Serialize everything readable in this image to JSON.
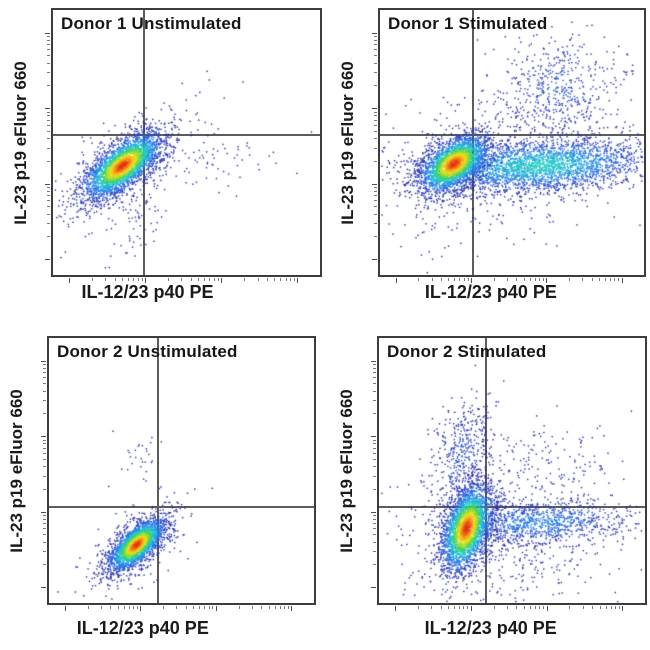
{
  "chart_data": {
    "type": "scatter",
    "subtype": "flow-cytometry-pseudocolor-density-dot-plots",
    "grid": "2 rows x 2 columns",
    "axes": {
      "x_label": "IL-12/23 p40 PE",
      "y_label": "IL-23 p19 eFluor 660",
      "scale": "biexponential log-style axes, unlabeled minor ticks",
      "gridlines": false
    },
    "legend": "none (density encoded blue=low to red=high)",
    "colormap": [
      {
        "t": 0.0,
        "color": "#23249e"
      },
      {
        "t": 0.12,
        "color": "#2b44c8"
      },
      {
        "t": 0.25,
        "color": "#2472e8"
      },
      {
        "t": 0.4,
        "color": "#1fa8e0"
      },
      {
        "t": 0.52,
        "color": "#24cfc3"
      },
      {
        "t": 0.62,
        "color": "#3bd45e"
      },
      {
        "t": 0.72,
        "color": "#9fdd2e"
      },
      {
        "t": 0.82,
        "color": "#eee01a"
      },
      {
        "t": 0.91,
        "color": "#f89b17"
      },
      {
        "t": 1.0,
        "color": "#e32c12"
      }
    ],
    "style": {
      "gate_color": "#5c5c5c",
      "border_color": "#3c3c3c",
      "text_color": "#1a1a1a",
      "background": "#ffffff"
    },
    "tick_layout": {
      "decade_fracs": [
        0.06,
        0.345,
        0.63,
        0.915
      ],
      "decade_span": 0.285
    },
    "panels": [
      {
        "title": "Donor 1 Unstimulated",
        "xlabel": "IL-12/23 p40 PE",
        "ylabel": "IL-23 p19 eFluor 660",
        "quadrant_gate": {
          "x_frac": 0.34,
          "y_frac": 0.472
        },
        "populations": [
          {
            "name": "halo",
            "cx": 0.27,
            "cy": 0.6,
            "angle": -38,
            "sx": 0.17,
            "sy": 0.075,
            "n": 300,
            "intensity": 0.1
          },
          {
            "name": "right-tail",
            "cx": 0.52,
            "cy": 0.585,
            "angle": -5,
            "sx": 0.17,
            "sy": 0.05,
            "n": 80,
            "intensity": 0.09
          },
          {
            "name": "lower-tail",
            "cx": 0.3,
            "cy": 0.8,
            "angle": -40,
            "sx": 0.07,
            "sy": 0.05,
            "n": 50,
            "intensity": 0.09
          },
          {
            "name": "main-double-negative",
            "cx": 0.258,
            "cy": 0.585,
            "angle": -38,
            "sx": 0.088,
            "sy": 0.038,
            "n": 3000,
            "intensity": 1.0
          }
        ]
      },
      {
        "title": "Donor 1 Stimulated",
        "xlabel": "IL-12/23 p40 PE",
        "ylabel": "IL-23 p19 eFluor 660",
        "quadrant_gate": {
          "x_frac": 0.354,
          "y_frac": 0.472
        },
        "populations": [
          {
            "name": "halo",
            "cx": 0.38,
            "cy": 0.6,
            "angle": -10,
            "sx": 0.26,
            "sy": 0.15,
            "n": 420,
            "intensity": 0.09
          },
          {
            "name": "upper-right-plume",
            "cx": 0.67,
            "cy": 0.3,
            "angle": -25,
            "sx": 0.115,
            "sy": 0.105,
            "n": 520,
            "intensity": 0.17
          },
          {
            "name": "p40-positive-band",
            "cx": 0.6,
            "cy": 0.585,
            "angle": -3,
            "sx": 0.215,
            "sy": 0.05,
            "n": 2800,
            "intensity": 0.52
          },
          {
            "name": "main",
            "cx": 0.278,
            "cy": 0.578,
            "angle": -35,
            "sx": 0.075,
            "sy": 0.042,
            "n": 2600,
            "intensity": 1.0
          }
        ]
      },
      {
        "title": "Donor 2 Unstimulated",
        "xlabel": "IL-12/23 p40 PE",
        "ylabel": "IL-23 p19 eFluor 660",
        "quadrant_gate": {
          "x_frac": 0.413,
          "y_frac": 0.638
        },
        "populations": [
          {
            "name": "halo",
            "cx": 0.33,
            "cy": 0.79,
            "angle": -42,
            "sx": 0.115,
            "sy": 0.055,
            "n": 260,
            "intensity": 0.1
          },
          {
            "name": "sparse-above",
            "cx": 0.33,
            "cy": 0.45,
            "angle": 0,
            "sx": 0.04,
            "sy": 0.055,
            "n": 28,
            "intensity": 0.09
          },
          {
            "name": "main-double-negative",
            "cx": 0.328,
            "cy": 0.778,
            "angle": -42,
            "sx": 0.066,
            "sy": 0.03,
            "n": 2400,
            "intensity": 1.0
          }
        ]
      },
      {
        "title": "Donor 2 Stimulated",
        "xlabel": "IL-12/23 p40 PE",
        "ylabel": "IL-23 p19 eFluor 660",
        "quadrant_gate": {
          "x_frac": 0.404,
          "y_frac": 0.636
        },
        "populations": [
          {
            "name": "halo",
            "cx": 0.36,
            "cy": 0.72,
            "angle": 0,
            "sx": 0.17,
            "sy": 0.15,
            "n": 420,
            "intensity": 0.09
          },
          {
            "name": "top-plume",
            "cx": 0.315,
            "cy": 0.44,
            "angle": 8,
            "sx": 0.05,
            "sy": 0.105,
            "n": 420,
            "intensity": 0.16
          },
          {
            "name": "upper-right-scatter",
            "cx": 0.62,
            "cy": 0.47,
            "angle": 0,
            "sx": 0.13,
            "sy": 0.09,
            "n": 150,
            "intensity": 0.08
          },
          {
            "name": "right-band",
            "cx": 0.6,
            "cy": 0.695,
            "angle": -2,
            "sx": 0.165,
            "sy": 0.042,
            "n": 1000,
            "intensity": 0.3
          },
          {
            "name": "lower-right-scatter",
            "cx": 0.6,
            "cy": 0.86,
            "angle": 0,
            "sx": 0.16,
            "sy": 0.08,
            "n": 120,
            "intensity": 0.08
          },
          {
            "name": "main",
            "cx": 0.327,
            "cy": 0.715,
            "angle": -72,
            "sx": 0.085,
            "sy": 0.042,
            "n": 2800,
            "intensity": 1.0
          }
        ]
      }
    ]
  }
}
